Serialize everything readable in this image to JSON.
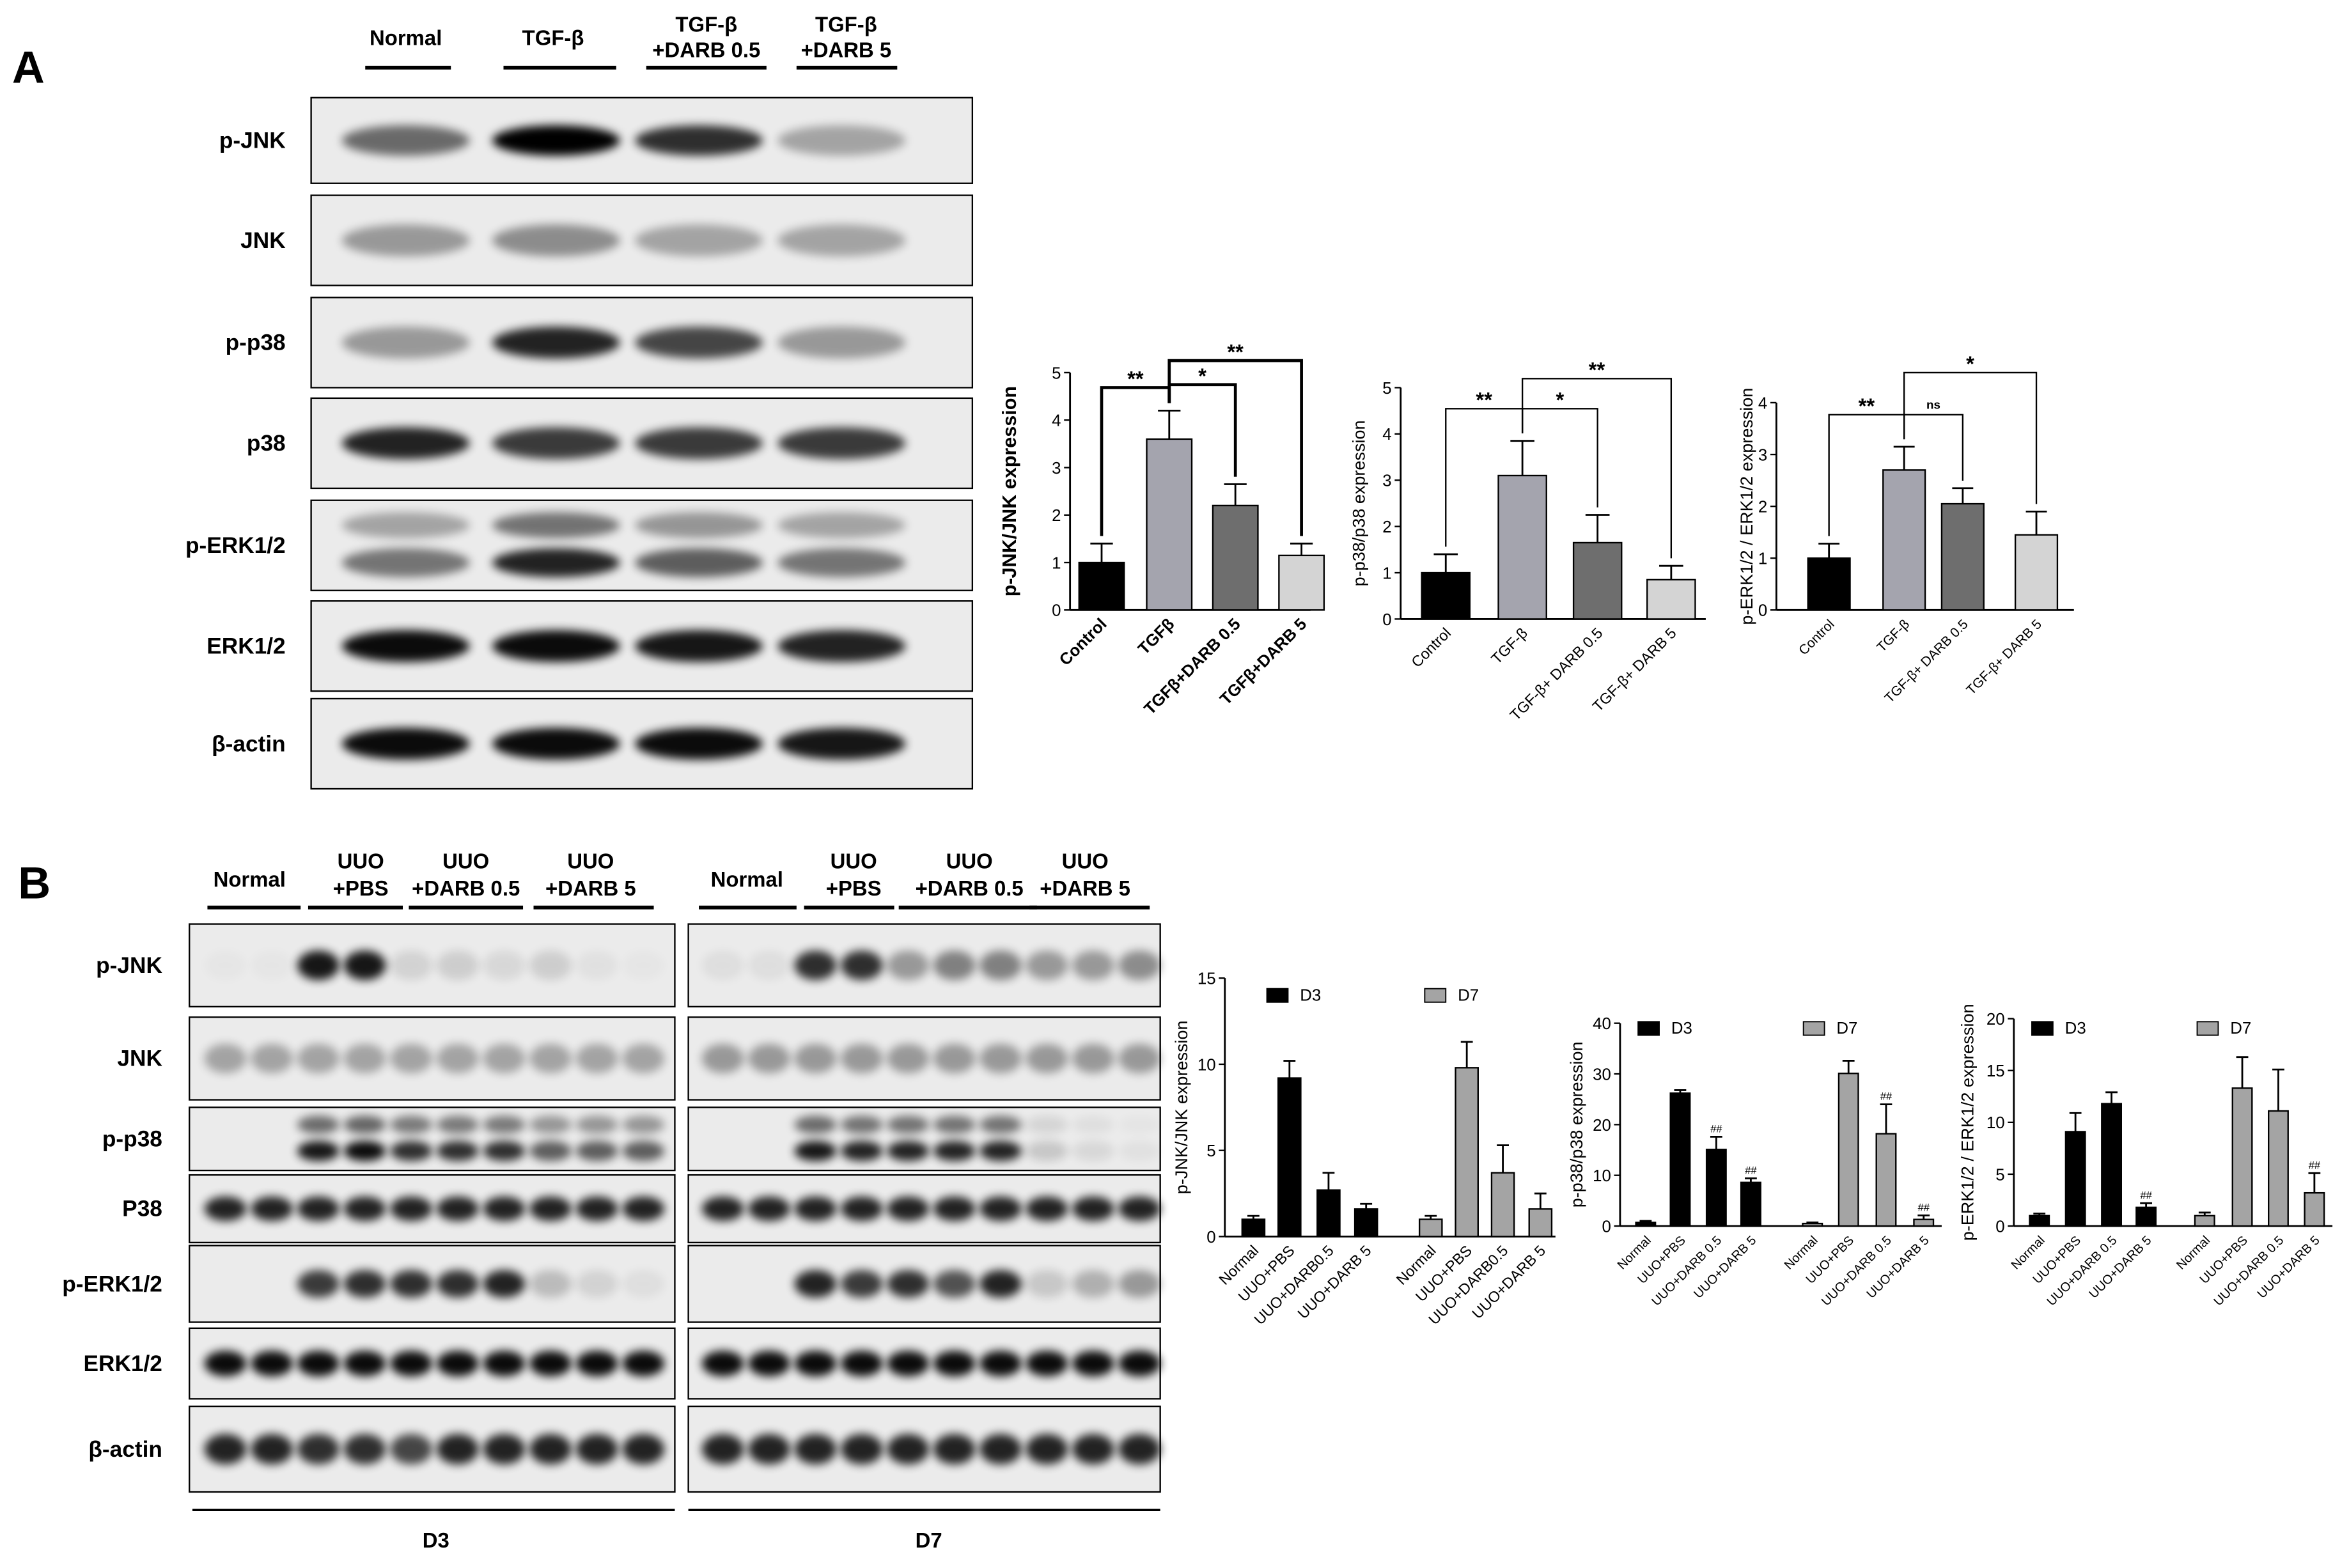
{
  "panel_a": {
    "label": "A",
    "lanes": [
      [
        "Normal"
      ],
      [
        "TGF-β"
      ],
      [
        "TGF-β",
        "+DARB 0.5"
      ],
      [
        "TGF-β",
        "+DARB 5"
      ]
    ],
    "rows": [
      "p-JNK",
      "JNK",
      "p-p38",
      "p38",
      "p-ERK1/2",
      "ERK1/2",
      "β-actin"
    ]
  },
  "panel_b": {
    "label": "B",
    "groups": [
      {
        "name": "D3",
        "lanes": [
          [
            "Normal"
          ],
          [
            "UUO",
            "+PBS"
          ],
          [
            "UUO",
            "+DARB 0.5"
          ],
          [
            "UUO",
            "+DARB 5"
          ]
        ]
      },
      {
        "name": "D7",
        "lanes": [
          [
            "Normal"
          ],
          [
            "UUO",
            "+PBS"
          ],
          [
            "UUO",
            "+DARB 0.5"
          ],
          [
            "UUO",
            "+DARB 5"
          ]
        ]
      }
    ],
    "rows": [
      "p-JNK",
      "JNK",
      "p-p38",
      "P38",
      "p-ERK1/2",
      "ERK1/2",
      "β-actin"
    ]
  },
  "chart_data": [
    {
      "type": "bar",
      "y_label": "p-JNK/JNK expression",
      "categories": [
        "Control",
        "TGFβ",
        "TGFβ+DARB 0.5",
        "TGFβ+DARB 5"
      ],
      "values": [
        1.0,
        3.6,
        2.2,
        1.15
      ],
      "errors": [
        0.4,
        0.6,
        0.45,
        0.25
      ],
      "colors": [
        "#000000",
        "#a4a4ae",
        "#6e6e6e",
        "#d4d4d4"
      ],
      "ylim": [
        0,
        5
      ],
      "yticks": [
        0,
        1,
        2,
        3,
        4,
        5
      ],
      "annotations": [
        "**",
        "*",
        "**"
      ]
    },
    {
      "type": "bar",
      "y_label": "p-p38/p38 expression",
      "categories": [
        "Control",
        "TGF-β",
        "TGF-β+ DARB 0.5",
        "TGF-β+ DARB 5"
      ],
      "values": [
        1.0,
        3.1,
        1.65,
        0.85
      ],
      "errors": [
        0.4,
        0.75,
        0.6,
        0.3
      ],
      "colors": [
        "#000000",
        "#a4a4ae",
        "#6e6e6e",
        "#d4d4d4"
      ],
      "ylim": [
        0,
        5
      ],
      "yticks": [
        0,
        1,
        2,
        3,
        4,
        5
      ],
      "annotations": [
        "**",
        "*",
        "**"
      ]
    },
    {
      "type": "bar",
      "y_label": "p-ERK1/2 / ERK1/2 expression",
      "categories": [
        "Control",
        "TGF-β",
        "TGF-β+ DARB 0.5",
        "TGF-β+ DARB 5"
      ],
      "values": [
        1.0,
        2.7,
        2.05,
        1.45
      ],
      "errors": [
        0.28,
        0.45,
        0.3,
        0.45
      ],
      "colors": [
        "#000000",
        "#a4a4ae",
        "#6e6e6e",
        "#d4d4d4"
      ],
      "ylim": [
        0,
        4
      ],
      "yticks": [
        0,
        1,
        2,
        3,
        4
      ],
      "annotations": [
        "**",
        "ns",
        "*"
      ]
    },
    {
      "type": "grouped-bar",
      "y_label": "p-JNK/JNK expression",
      "categories": [
        "Normal",
        "UUO+PBS",
        "UUO+DARB0.5",
        "UUO+DARB 5"
      ],
      "series": [
        {
          "name": "D3",
          "color": "#000000",
          "values": [
            1.0,
            9.2,
            2.7,
            1.6
          ],
          "errors": [
            0.2,
            1.0,
            1.0,
            0.3
          ]
        },
        {
          "name": "D7",
          "color": "#a4a4a4",
          "values": [
            1.0,
            9.8,
            3.7,
            1.6
          ],
          "errors": [
            0.2,
            1.5,
            1.6,
            0.9
          ]
        }
      ],
      "ylim": [
        0,
        15
      ],
      "yticks": [
        0,
        5,
        10,
        15
      ]
    },
    {
      "type": "grouped-bar",
      "y_label": "p-p38/p38 expression",
      "categories": [
        "Normal",
        "UUO+PBS",
        "UUO+DARB 0.5",
        "UUO+DARB 5"
      ],
      "series": [
        {
          "name": "D3",
          "color": "#000000",
          "values": [
            0.7,
            26.2,
            15.1,
            8.6
          ],
          "errors": [
            0.3,
            0.6,
            2.5,
            0.8
          ],
          "annotations": [
            null,
            null,
            "##",
            "##"
          ]
        },
        {
          "name": "D7",
          "color": "#a4a4a4",
          "values": [
            0.5,
            30.1,
            18.2,
            1.3
          ],
          "errors": [
            0.2,
            2.5,
            5.8,
            0.8
          ],
          "annotations": [
            null,
            null,
            "##",
            "##"
          ]
        }
      ],
      "ylim": [
        0,
        40
      ],
      "yticks": [
        0,
        10,
        20,
        30,
        40
      ]
    },
    {
      "type": "grouped-bar",
      "y_label": "p-ERK1/2 / ERK1/2 expression",
      "categories": [
        "Normal",
        "UUO+PBS",
        "UUO+DARB 0.5",
        "UUO+DARB 5"
      ],
      "series": [
        {
          "name": "D3",
          "color": "#000000",
          "values": [
            1.0,
            9.1,
            11.8,
            1.8
          ],
          "errors": [
            0.2,
            1.8,
            1.1,
            0.4
          ],
          "annotations": [
            null,
            null,
            null,
            "##"
          ]
        },
        {
          "name": "D7",
          "color": "#a4a4a4",
          "values": [
            1.0,
            13.3,
            11.1,
            3.2
          ],
          "errors": [
            0.3,
            3.0,
            4.0,
            1.9
          ],
          "annotations": [
            null,
            null,
            null,
            "##"
          ]
        }
      ],
      "ylim": [
        0,
        20
      ],
      "yticks": [
        0,
        5,
        10,
        15,
        20
      ]
    }
  ]
}
